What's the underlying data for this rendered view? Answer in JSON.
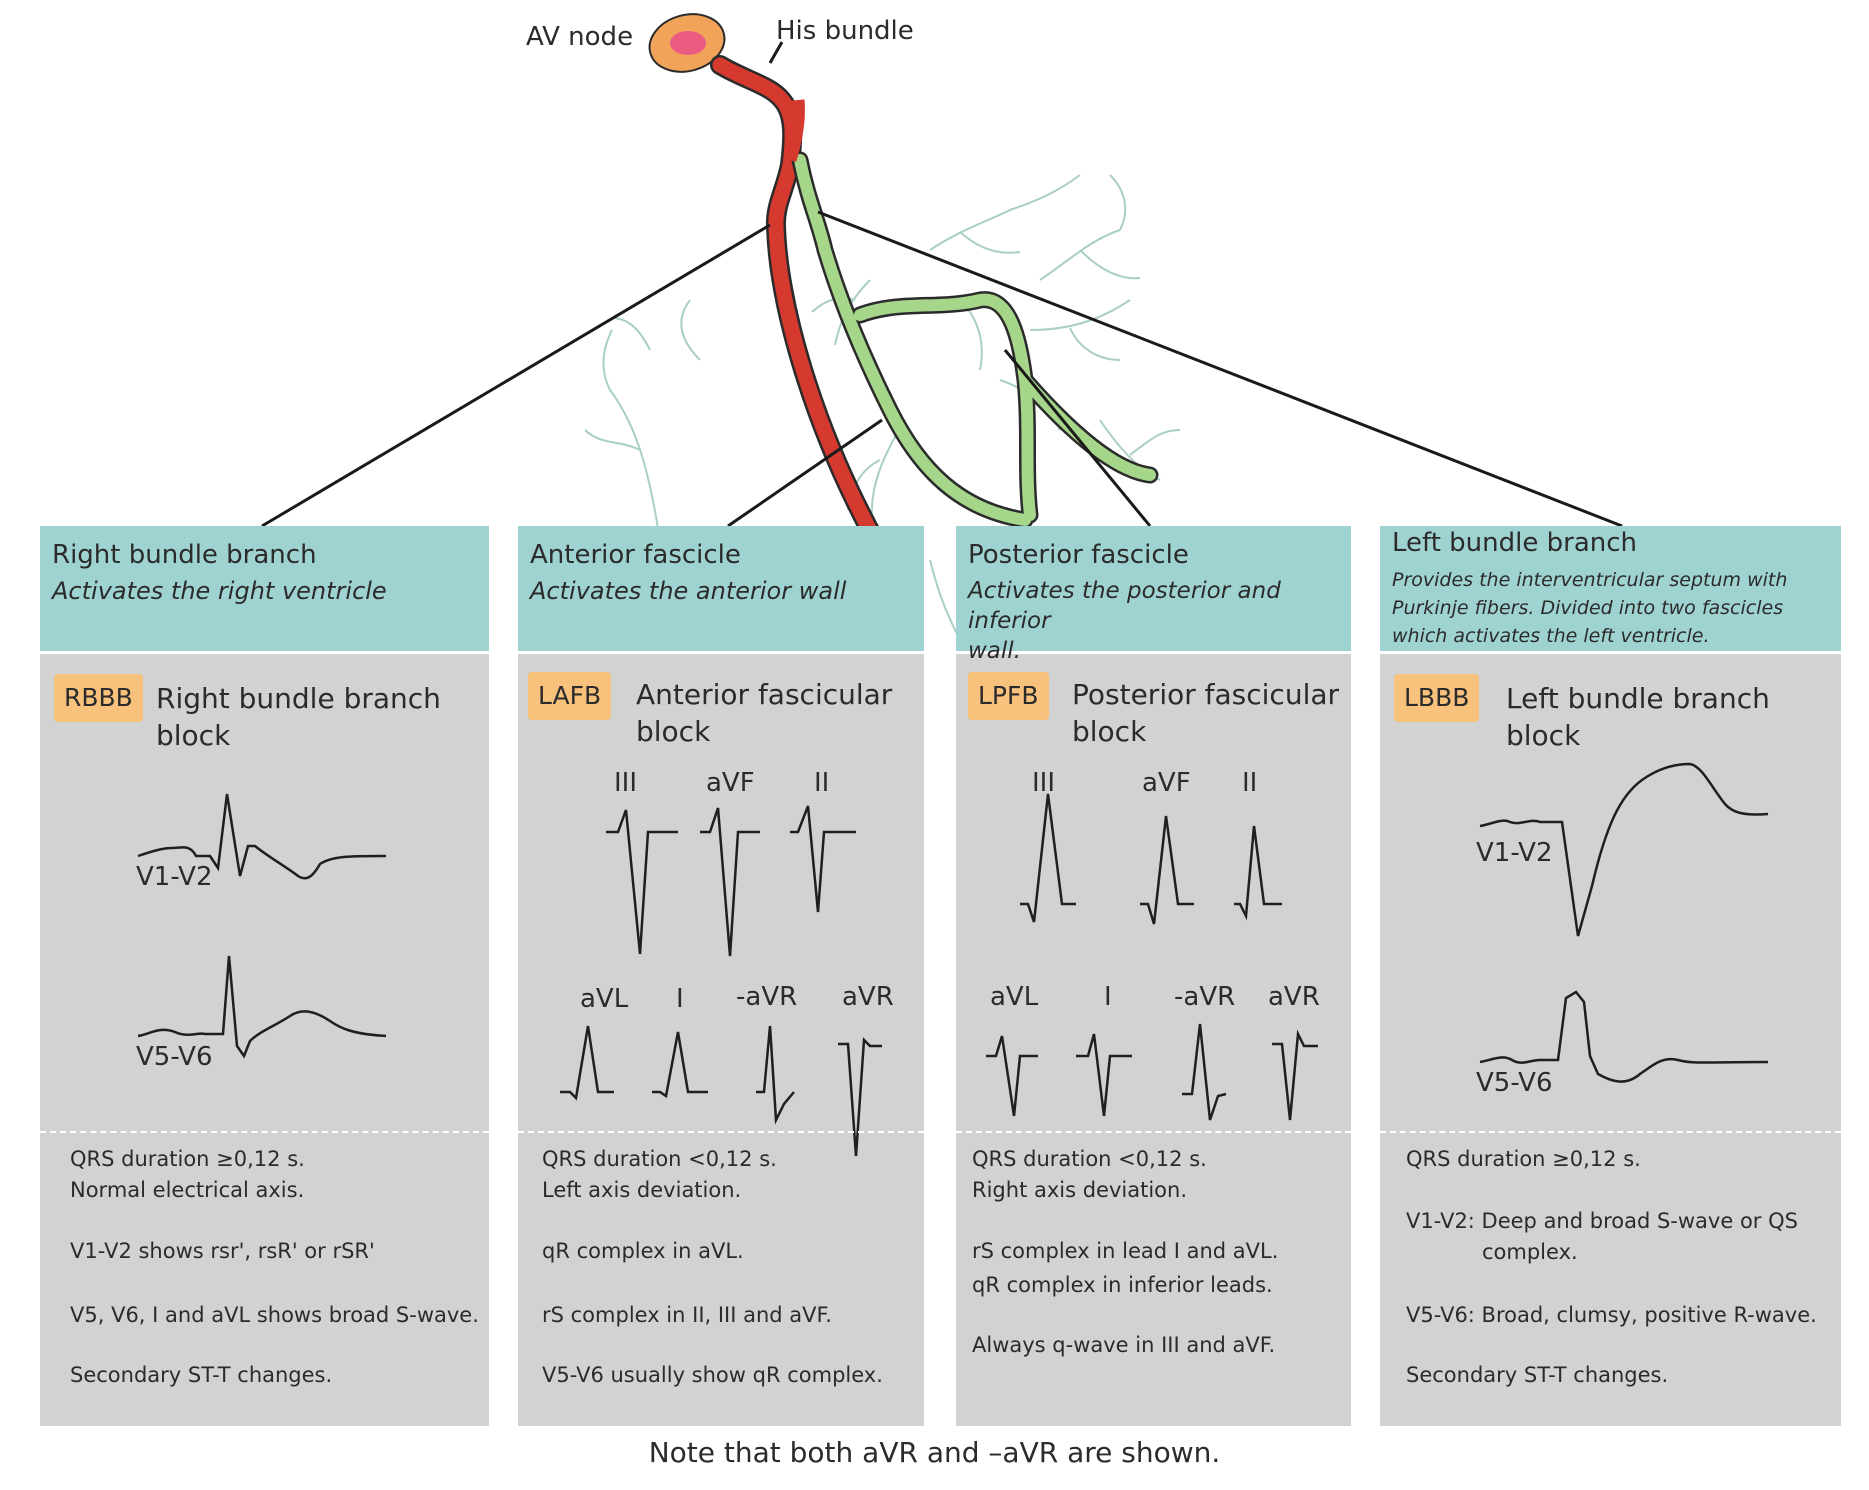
{
  "anatomy": {
    "av_node": "AV node",
    "his_bundle": "His bundle"
  },
  "panels": [
    {
      "title": "Right bundle branch",
      "subtitle": "Activates the right ventricle",
      "badge": "RBBB",
      "block_name_line1": "Right bundle branch",
      "block_name_line2": "block",
      "leads": [
        "V1-V2",
        "V5-V6"
      ],
      "criteria": [
        "QRS duration ≥0,12 s.",
        "Normal electrical axis.",
        "V1-V2 shows rsr', rsR' or rSR'",
        "V5, V6, I and aVL shows broad S-wave.",
        "Secondary ST-T changes."
      ]
    },
    {
      "title": "Anterior fascicle",
      "subtitle": "Activates the anterior wall",
      "badge": "LAFB",
      "block_name_line1": "Anterior fascicular",
      "block_name_line2": "block",
      "leads": [
        "III",
        "aVF",
        "II",
        "aVL",
        "I",
        "-aVR",
        "aVR"
      ],
      "criteria": [
        "QRS duration <0,12 s.",
        "Left axis deviation.",
        "qR complex in aVL.",
        "rS complex in II, III and aVF.",
        "V5-V6  usually show qR complex."
      ]
    },
    {
      "title": "Posterior fascicle",
      "subtitle_line1": "Activates the posterior and inferior",
      "subtitle_line2": "wall.",
      "badge": "LPFB",
      "block_name_line1": "Posterior fascicular",
      "block_name_line2": "block",
      "leads": [
        "III",
        "aVF",
        "II",
        "aVL",
        "I",
        "-aVR",
        "aVR"
      ],
      "criteria": [
        "QRS duration <0,12 s.",
        "Right axis deviation.",
        "rS complex in lead I and aVL.",
        "qR complex in inferior leads.",
        "Always q-wave in III and aVF."
      ]
    },
    {
      "title": "Left bundle branch",
      "subtitle_line1": "Provides the interventricular septum with",
      "subtitle_line2": "Purkinje fibers. Divided into two fascicles",
      "subtitle_line3": "which activates the left ventricle.",
      "badge": "LBBB",
      "block_name_line1": "Left bundle branch block",
      "leads": [
        "V1-V2",
        "V5-V6"
      ],
      "criteria": [
        "QRS duration ≥0,12 s.",
        "V1-V2: Deep and broad S-wave or QS",
        "complex.",
        "V5-V6: Broad, clumsy, positive R-wave.",
        "Secondary ST-T changes."
      ]
    }
  ],
  "footnote": "Note that both aVR and –aVR are shown.",
  "colors": {
    "right_branch": "#d63a2f",
    "left_branch": "#a6d68a",
    "header_teal": "#9fd3d2",
    "panel_gray": "#d2d2d2",
    "badge_orange": "#f8c27d"
  }
}
